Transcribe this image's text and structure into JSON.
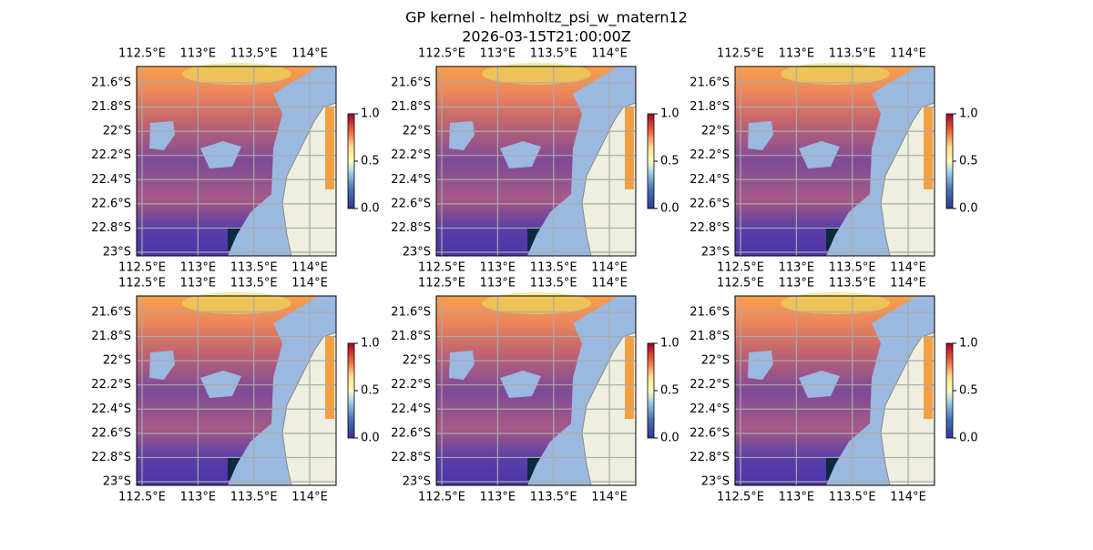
{
  "title": "GP kernel - helmholtz_psi_w_matern12",
  "subtitle": "2026-03-15T21:00:00Z",
  "map": {
    "xlim": [
      112.451,
      114.236
    ],
    "ylim": [
      -23.03,
      -21.465
    ],
    "xticks": [
      {
        "value": 112.5,
        "label": "112.5°E"
      },
      {
        "value": 113,
        "label": "113°E"
      },
      {
        "value": 113.5,
        "label": "113.5°E"
      },
      {
        "value": 114,
        "label": "114°E"
      }
    ],
    "yticks": [
      {
        "value": -21.6,
        "label": "21.6°S"
      },
      {
        "value": -21.8,
        "label": "21.8°S"
      },
      {
        "value": -22,
        "label": "22°S"
      },
      {
        "value": -22.2,
        "label": "22.2°S"
      },
      {
        "value": -22.4,
        "label": "22.4°S"
      },
      {
        "value": -22.6,
        "label": "22.6°S"
      },
      {
        "value": -22.8,
        "label": "22.8°S"
      },
      {
        "value": -23,
        "label": "23°S"
      }
    ],
    "grid": true
  },
  "colorbar": {
    "lim": [
      0,
      1
    ],
    "ticks": [
      {
        "value": 0,
        "label": "0.0"
      },
      {
        "value": 0.5,
        "label": "0.5"
      },
      {
        "value": 1,
        "label": "1.0"
      }
    ]
  }
}
